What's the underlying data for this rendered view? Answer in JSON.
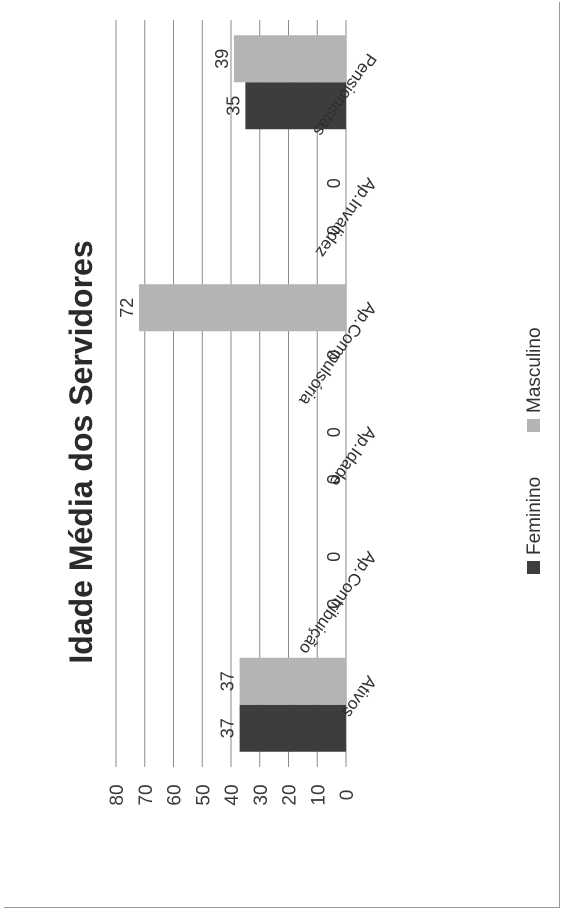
{
  "chart_data": {
    "type": "bar",
    "orientation": "rotated 90 degrees clockwise (page viewed sideways)",
    "title": "Idade Média dos Servidores",
    "categories": [
      "Ativos",
      "Ap.Contribuição",
      "Ap.Idade",
      "Ap.Compulsória",
      "Ap.Invalidez",
      "Pensionistas"
    ],
    "series": [
      {
        "name": "Feminino",
        "values": [
          37,
          0,
          0,
          0,
          0,
          35
        ],
        "color": "#3d3d3d"
      },
      {
        "name": "Masculino",
        "values": [
          37,
          0,
          0,
          72,
          0,
          39
        ],
        "color": "#b4b4b4"
      }
    ],
    "data_labels": {
      "Feminino": [
        "37",
        "0",
        "0",
        "0",
        "0",
        "35"
      ],
      "Masculino": [
        "37",
        "0",
        "0",
        "72",
        "0",
        "39"
      ]
    },
    "ylim": [
      0,
      80
    ],
    "yticks": [
      "0",
      "10",
      "20",
      "30",
      "40",
      "50",
      "60",
      "70",
      "80"
    ],
    "grid": true,
    "legend": "bottom",
    "xlabel": "",
    "ylabel": ""
  }
}
